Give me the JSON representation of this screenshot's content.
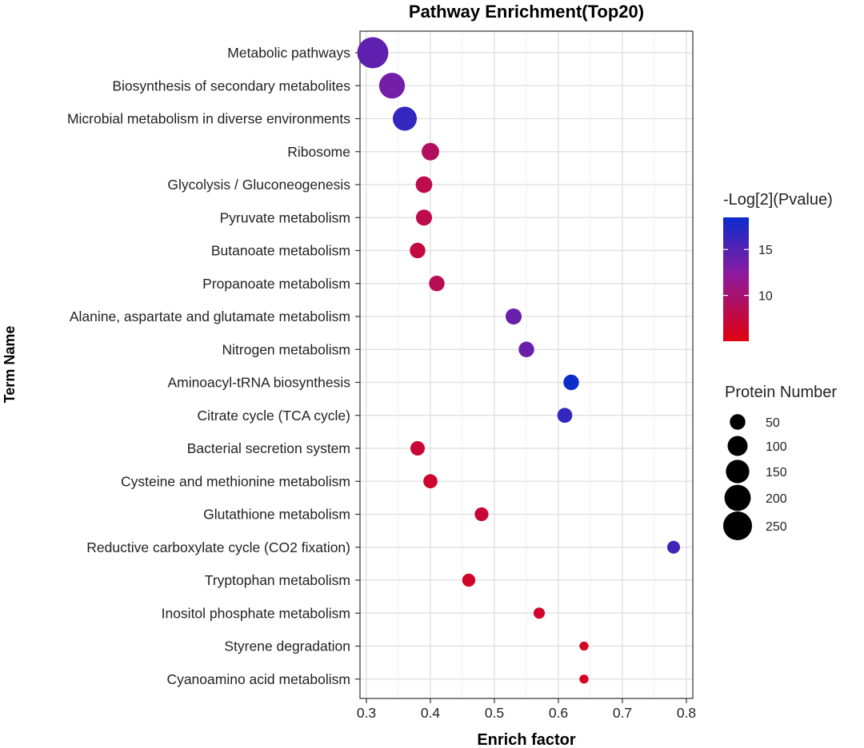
{
  "chart_data": {
    "type": "scatter",
    "title": "Pathway Enrichment(Top20)",
    "xlabel": "Enrich factor",
    "ylabel": "Term Name",
    "xlim": [
      0.29,
      0.81
    ],
    "xticks": [
      0.3,
      0.4,
      0.5,
      0.6,
      0.7,
      0.8
    ],
    "xtick_labels": [
      "0.3",
      "0.4",
      "0.5",
      "0.6",
      "0.7",
      "0.8"
    ],
    "grid": true,
    "color_legend": {
      "title": "-Log[2](Pvalue)",
      "range": [
        5,
        18.5
      ],
      "ticks": [
        10,
        15
      ],
      "tick_labels": [
        "10",
        "15"
      ],
      "low_color": "#e0000f",
      "mid_color": "#8b1aa0",
      "high_color": "#0a2dcc"
    },
    "size_legend": {
      "title": "Protein Number",
      "values": [
        50,
        100,
        150,
        200,
        250
      ],
      "labels": [
        "50",
        "100",
        "150",
        "200",
        "250"
      ]
    },
    "terms": [
      "Metabolic pathways",
      "Biosynthesis of secondary metabolites",
      "Microbial metabolism in diverse environments",
      "Ribosome",
      "Glycolysis / Gluconeogenesis",
      "Pyruvate metabolism",
      "Butanoate metabolism",
      "Propanoate metabolism",
      "Alanine, aspartate and glutamate metabolism",
      "Nitrogen metabolism",
      "Aminoacyl-tRNA biosynthesis",
      "Citrate cycle (TCA cycle)",
      "Bacterial secretion system",
      "Cysteine and methionine metabolism",
      "Glutathione metabolism",
      "Reductive carboxylate cycle (CO2 fixation)",
      "Tryptophan metabolism",
      "Inositol phosphate metabolism",
      "Styrene degradation",
      "Cyanoamino acid metabolism"
    ],
    "points": [
      {
        "term": "Metabolic pathways",
        "enrich_factor": 0.31,
        "protein_number": 300,
        "neg_log2_pvalue": 14.5
      },
      {
        "term": "Biosynthesis of secondary metabolites",
        "enrich_factor": 0.34,
        "protein_number": 190,
        "neg_log2_pvalue": 13.5
      },
      {
        "term": "Microbial metabolism in diverse environments",
        "enrich_factor": 0.36,
        "protein_number": 160,
        "neg_log2_pvalue": 16.5
      },
      {
        "term": "Ribosome",
        "enrich_factor": 0.4,
        "protein_number": 70,
        "neg_log2_pvalue": 9.0
      },
      {
        "term": "Glycolysis / Gluconeogenesis",
        "enrich_factor": 0.39,
        "protein_number": 60,
        "neg_log2_pvalue": 8.0
      },
      {
        "term": "Pyruvate metabolism",
        "enrich_factor": 0.39,
        "protein_number": 55,
        "neg_log2_pvalue": 8.0
      },
      {
        "term": "Butanoate metabolism",
        "enrich_factor": 0.38,
        "protein_number": 50,
        "neg_log2_pvalue": 7.5
      },
      {
        "term": "Propanoate metabolism",
        "enrich_factor": 0.41,
        "protein_number": 50,
        "neg_log2_pvalue": 8.5
      },
      {
        "term": "Alanine, aspartate and glutamate metabolism",
        "enrich_factor": 0.53,
        "protein_number": 55,
        "neg_log2_pvalue": 14.0
      },
      {
        "term": "Nitrogen metabolism",
        "enrich_factor": 0.55,
        "protein_number": 50,
        "neg_log2_pvalue": 14.0
      },
      {
        "term": "Aminoacyl-tRNA biosynthesis",
        "enrich_factor": 0.62,
        "protein_number": 50,
        "neg_log2_pvalue": 18.5
      },
      {
        "term": "Citrate cycle (TCA cycle)",
        "enrich_factor": 0.61,
        "protein_number": 45,
        "neg_log2_pvalue": 16.5
      },
      {
        "term": "Bacterial secretion system",
        "enrich_factor": 0.38,
        "protein_number": 40,
        "neg_log2_pvalue": 7.0
      },
      {
        "term": "Cysteine and methionine metabolism",
        "enrich_factor": 0.4,
        "protein_number": 38,
        "neg_log2_pvalue": 6.5
      },
      {
        "term": "Glutathione metabolism",
        "enrich_factor": 0.48,
        "protein_number": 35,
        "neg_log2_pvalue": 7.0
      },
      {
        "term": "Reductive carboxylate cycle (CO2 fixation)",
        "enrich_factor": 0.78,
        "protein_number": 28,
        "neg_log2_pvalue": 16.0
      },
      {
        "term": "Tryptophan metabolism",
        "enrich_factor": 0.46,
        "protein_number": 30,
        "neg_log2_pvalue": 6.5
      },
      {
        "term": "Inositol phosphate metabolism",
        "enrich_factor": 0.57,
        "protein_number": 18,
        "neg_log2_pvalue": 6.5
      },
      {
        "term": "Styrene degradation",
        "enrich_factor": 0.64,
        "protein_number": 8,
        "neg_log2_pvalue": 6.0
      },
      {
        "term": "Cyanoamino acid metabolism",
        "enrich_factor": 0.64,
        "protein_number": 8,
        "neg_log2_pvalue": 6.0
      }
    ]
  }
}
